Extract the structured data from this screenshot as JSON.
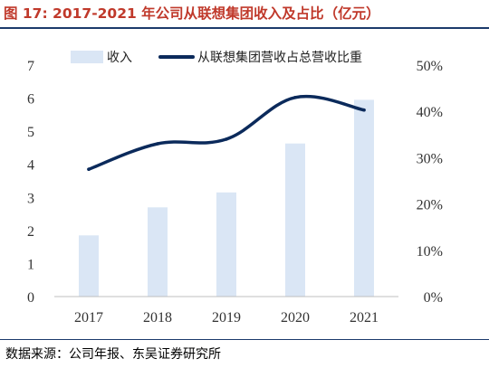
{
  "header": {
    "title": "图 17: 2017-2021 年公司从联想集团收入及占比（亿元）",
    "title_color": "#c0392b"
  },
  "footer": {
    "source": "数据来源：公司年报、东吴证券研究所"
  },
  "chart_data": {
    "type": "bar",
    "categories": [
      "2017",
      "2018",
      "2019",
      "2020",
      "2021"
    ],
    "series": [
      {
        "name": "收入",
        "type": "bar",
        "axis": "left",
        "color": "#dae6f5",
        "values": [
          1.85,
          2.7,
          3.15,
          4.63,
          5.95
        ]
      },
      {
        "name": "从联想集团营收占总营收比重",
        "type": "line",
        "axis": "right",
        "color": "#0b2a5b",
        "values": [
          27.5,
          33.0,
          34.0,
          43.0,
          40.3
        ]
      }
    ],
    "y_left": {
      "ylim": [
        0,
        7
      ],
      "ticks": [
        "0",
        "1",
        "2",
        "3",
        "4",
        "5",
        "6",
        "7"
      ]
    },
    "y_right": {
      "ylim": [
        0,
        50
      ],
      "ticks": [
        "0%",
        "10%",
        "20%",
        "30%",
        "40%",
        "50%"
      ]
    },
    "grid": false,
    "legend_position": "top"
  }
}
